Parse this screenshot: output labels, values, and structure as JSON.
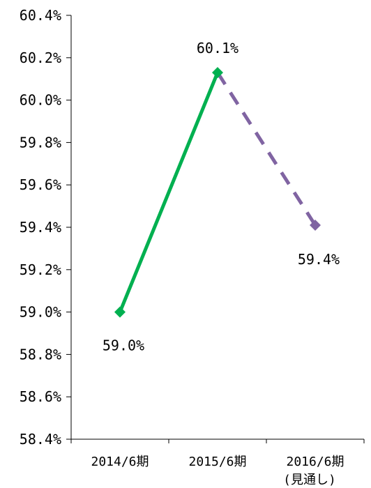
{
  "chart_data": {
    "type": "line",
    "categories": [
      "2014/6期",
      "2015/6期",
      "2016/6期"
    ],
    "category_sublabels": [
      "",
      "",
      "(見通し)"
    ],
    "y_ticks": [
      "58.4%",
      "58.6%",
      "58.8%",
      "59.0%",
      "59.2%",
      "59.4%",
      "59.6%",
      "59.8%",
      "60.0%",
      "60.2%",
      "60.4%"
    ],
    "ylim": [
      58.4,
      60.4
    ],
    "series": [
      {
        "values": [
          59.0,
          60.13,
          null
        ],
        "color": "#00b050",
        "style": "solid",
        "marker": "diamond"
      },
      {
        "values": [
          null,
          60.13,
          59.41
        ],
        "color": "#8064a2",
        "style": "dashed",
        "marker": "diamond"
      }
    ],
    "data_labels": [
      "59.0%",
      "60.1%",
      "59.4%"
    ],
    "grid": false,
    "legend": "none"
  }
}
